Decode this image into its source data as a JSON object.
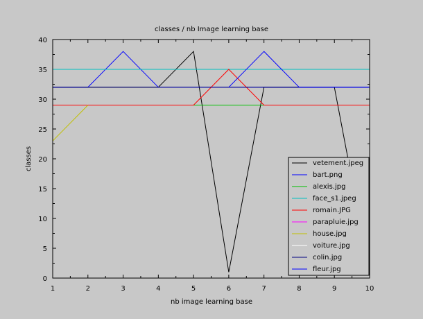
{
  "chart_data": {
    "type": "line",
    "title": "classes / nb Image learning base",
    "xlabel": "nb image learning base",
    "ylabel": "classes",
    "xlim": [
      1,
      10
    ],
    "ylim": [
      0,
      40
    ],
    "x_ticks": [
      1,
      2,
      3,
      4,
      5,
      6,
      7,
      8,
      9,
      10
    ],
    "y_ticks": [
      0,
      5,
      10,
      15,
      20,
      25,
      30,
      35,
      40
    ],
    "legend_position": "bottom-right",
    "grid": false,
    "series": [
      {
        "name": "vetement.jpeg",
        "color": "#000000",
        "points": [
          [
            1,
            32
          ],
          [
            2,
            32
          ],
          [
            3,
            32
          ],
          [
            4,
            32
          ],
          [
            5,
            38
          ],
          [
            6,
            1
          ],
          [
            7,
            32
          ],
          [
            8,
            32
          ],
          [
            9,
            32
          ],
          [
            10,
            1
          ]
        ]
      },
      {
        "name": "bart.png",
        "color": "#0000ff",
        "points": [
          [
            1,
            32
          ],
          [
            2,
            32
          ],
          [
            3,
            38
          ],
          [
            4,
            32
          ],
          [
            5,
            32
          ],
          [
            6,
            32
          ],
          [
            7,
            32
          ],
          [
            8,
            32
          ],
          [
            9,
            32
          ],
          [
            10,
            32
          ]
        ]
      },
      {
        "name": "alexis.jpg",
        "color": "#00c000",
        "points": [
          [
            5,
            29
          ],
          [
            6,
            29
          ],
          [
            7,
            29
          ]
        ]
      },
      {
        "name": "face_s1.jpeg",
        "color": "#00c0c0",
        "points": [
          [
            1,
            35
          ],
          [
            2,
            35
          ],
          [
            3,
            35
          ],
          [
            4,
            35
          ],
          [
            5,
            35
          ],
          [
            6,
            35
          ],
          [
            7,
            35
          ],
          [
            8,
            35
          ],
          [
            9,
            35
          ],
          [
            10,
            35
          ]
        ]
      },
      {
        "name": "romain.JPG",
        "color": "#ff0000",
        "points": [
          [
            1,
            29
          ],
          [
            2,
            29
          ],
          [
            3,
            29
          ],
          [
            4,
            29
          ],
          [
            5,
            29
          ],
          [
            6,
            35
          ],
          [
            7,
            29
          ],
          [
            8,
            29
          ],
          [
            9,
            29
          ],
          [
            10,
            29
          ]
        ]
      },
      {
        "name": "parapluie.jpg",
        "color": "#ff00ff",
        "points": []
      },
      {
        "name": "house.jpg",
        "color": "#c0c000",
        "points": [
          [
            1,
            23
          ],
          [
            2,
            29
          ]
        ]
      },
      {
        "name": "voiture.jpg",
        "color": "#ffffff",
        "points": []
      },
      {
        "name": "colin.jpg",
        "color": "#000080",
        "points": [
          [
            1,
            32
          ],
          [
            2,
            32
          ],
          [
            3,
            32
          ],
          [
            4,
            32
          ],
          [
            5,
            32
          ],
          [
            6,
            32
          ],
          [
            7,
            32
          ],
          [
            8,
            32
          ],
          [
            9,
            32
          ],
          [
            10,
            32
          ]
        ]
      },
      {
        "name": "fleur.jpg",
        "color": "#0000ff",
        "points": [
          [
            6,
            32
          ],
          [
            7,
            38
          ],
          [
            8,
            32
          ],
          [
            9,
            32
          ],
          [
            10,
            32
          ]
        ]
      }
    ]
  }
}
